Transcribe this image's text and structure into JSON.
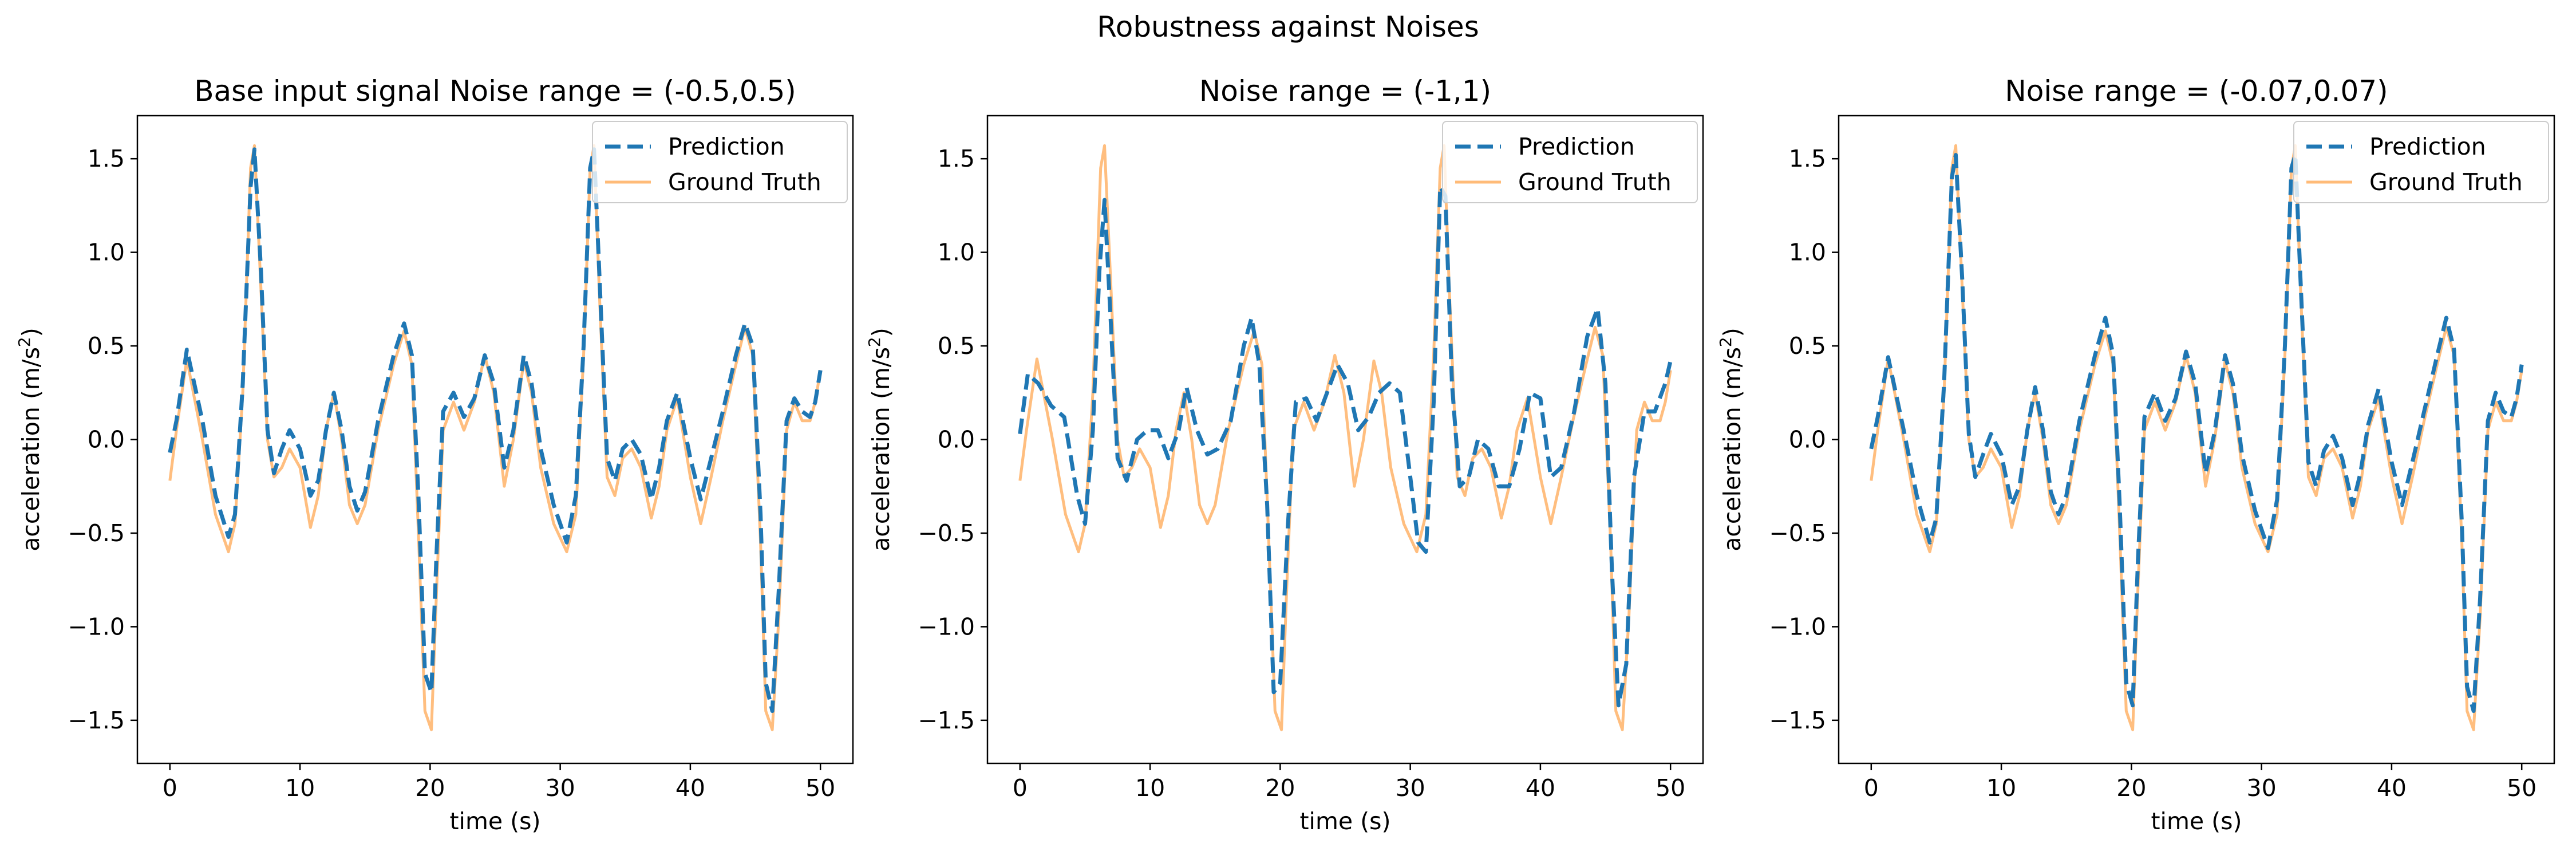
{
  "figure": {
    "suptitle": "Robustness against Noises"
  },
  "colors": {
    "prediction": "#1f77b4",
    "ground_truth": "#ffbb78"
  },
  "chart_data": [
    {
      "type": "line",
      "title": "Base input signal Noise range = (-0.5,0.5)",
      "xlabel": "time (s)",
      "ylabel_main": "acceleration (m/s",
      "ylabel_sup": "2",
      "ylabel_close": ")",
      "xlim": [
        -2.5,
        52.5
      ],
      "ylim": [
        -1.73,
        1.73
      ],
      "xticks": [
        0,
        10,
        20,
        30,
        40,
        50
      ],
      "yticks": [
        -1.5,
        -1.0,
        -0.5,
        0.0,
        0.5,
        1.0,
        1.5
      ],
      "legend_position": "upper right",
      "grid": false,
      "series": [
        {
          "name": "Prediction",
          "style": "dashed",
          "color": "#1f77b4",
          "x": [
            0,
            0.5,
            1.3,
            2.5,
            3.5,
            4.5,
            5.0,
            5.6,
            6.2,
            6.5,
            7.0,
            7.5,
            8.0,
            8.6,
            9.2,
            10.0,
            10.8,
            11.4,
            12.0,
            12.6,
            13.2,
            13.8,
            14.4,
            15.0,
            16.0,
            17.2,
            18.0,
            18.6,
            19.1,
            19.6,
            20.1,
            20.5,
            21.0,
            21.8,
            22.6,
            23.4,
            24.2,
            24.9,
            25.7,
            26.4,
            27.2,
            27.8,
            28.5,
            29.5,
            30.5,
            31.2,
            31.8,
            32.3,
            32.6,
            33.0,
            33.6,
            34.2,
            34.8,
            35.5,
            36.2,
            37.0,
            37.6,
            38.2,
            39.0,
            40.0,
            40.8,
            41.6,
            42.5,
            43.5,
            44.2,
            44.8,
            45.4,
            45.8,
            46.3,
            46.8,
            47.4,
            48.0,
            48.6,
            49.2,
            49.6,
            50.0
          ],
          "y": [
            -0.07,
            0.1,
            0.48,
            0.1,
            -0.3,
            -0.52,
            -0.4,
            0.3,
            1.35,
            1.55,
            0.9,
            0.05,
            -0.18,
            -0.05,
            0.05,
            -0.05,
            -0.3,
            -0.22,
            0.05,
            0.25,
            0.05,
            -0.25,
            -0.38,
            -0.28,
            0.1,
            0.45,
            0.62,
            0.45,
            -0.3,
            -1.25,
            -1.35,
            -0.6,
            0.15,
            0.25,
            0.12,
            0.22,
            0.45,
            0.3,
            -0.15,
            0.05,
            0.45,
            0.3,
            -0.05,
            -0.35,
            -0.55,
            -0.3,
            0.5,
            1.45,
            1.55,
            0.9,
            -0.1,
            -0.22,
            -0.05,
            0.0,
            -0.08,
            -0.32,
            -0.15,
            0.1,
            0.25,
            -0.1,
            -0.32,
            -0.1,
            0.15,
            0.45,
            0.62,
            0.5,
            -0.4,
            -1.3,
            -1.45,
            -0.8,
            0.1,
            0.22,
            0.15,
            0.12,
            0.2,
            0.37
          ]
        },
        {
          "name": "Ground Truth",
          "style": "solid",
          "color": "#ffbb78",
          "x": [
            0,
            0.5,
            1.3,
            2.5,
            3.5,
            4.5,
            5.0,
            5.6,
            6.2,
            6.5,
            7.0,
            7.5,
            8.0,
            8.6,
            9.2,
            10.0,
            10.8,
            11.4,
            12.0,
            12.6,
            13.2,
            13.8,
            14.4,
            15.0,
            16.0,
            17.2,
            18.0,
            18.6,
            19.1,
            19.6,
            20.1,
            20.5,
            21.0,
            21.8,
            22.6,
            23.4,
            24.2,
            24.9,
            25.7,
            26.4,
            27.2,
            27.8,
            28.5,
            29.5,
            30.5,
            31.2,
            31.8,
            32.3,
            32.6,
            33.0,
            33.6,
            34.2,
            34.8,
            35.5,
            36.2,
            37.0,
            37.6,
            38.2,
            39.0,
            40.0,
            40.8,
            41.6,
            42.5,
            43.5,
            44.2,
            44.8,
            45.4,
            45.8,
            46.3,
            46.8,
            47.4,
            48.0,
            48.6,
            49.2,
            49.6,
            50.0
          ],
          "y": [
            -0.22,
            0.05,
            0.43,
            0.0,
            -0.4,
            -0.6,
            -0.45,
            0.25,
            1.45,
            1.57,
            0.8,
            0.0,
            -0.2,
            -0.15,
            -0.05,
            -0.15,
            -0.47,
            -0.3,
            0.05,
            0.25,
            0.0,
            -0.35,
            -0.45,
            -0.35,
            0.05,
            0.4,
            0.58,
            0.4,
            -0.5,
            -1.45,
            -1.55,
            -0.8,
            0.05,
            0.2,
            0.05,
            0.2,
            0.45,
            0.25,
            -0.25,
            0.0,
            0.42,
            0.25,
            -0.15,
            -0.45,
            -0.6,
            -0.4,
            0.45,
            1.45,
            1.57,
            0.8,
            -0.2,
            -0.3,
            -0.1,
            -0.05,
            -0.15,
            -0.42,
            -0.25,
            0.05,
            0.22,
            -0.2,
            -0.45,
            -0.2,
            0.1,
            0.4,
            0.6,
            0.45,
            -0.55,
            -1.45,
            -1.55,
            -0.95,
            0.05,
            0.2,
            0.1,
            0.1,
            0.2,
            0.37
          ]
        }
      ]
    },
    {
      "type": "line",
      "title": "Noise range = (-1,1)",
      "xlabel": "time (s)",
      "ylabel_main": "acceleration (m/s",
      "ylabel_sup": "2",
      "ylabel_close": ")",
      "xlim": [
        -2.5,
        52.5
      ],
      "ylim": [
        -1.73,
        1.73
      ],
      "xticks": [
        0,
        10,
        20,
        30,
        40,
        50
      ],
      "yticks": [
        -1.5,
        -1.0,
        -0.5,
        0.0,
        0.5,
        1.0,
        1.5
      ],
      "legend_position": "upper right",
      "grid": false,
      "series": [
        {
          "name": "Prediction",
          "style": "dashed",
          "color": "#1f77b4",
          "x": [
            0,
            0.6,
            1.4,
            2.4,
            3.4,
            4.4,
            5.0,
            5.6,
            6.1,
            6.5,
            7.0,
            7.5,
            8.2,
            9.0,
            9.8,
            10.6,
            11.4,
            12.2,
            12.8,
            13.6,
            14.4,
            15.2,
            16.2,
            17.2,
            17.8,
            18.4,
            19.0,
            19.5,
            20.0,
            20.6,
            21.2,
            22.0,
            22.8,
            23.6,
            24.4,
            25.2,
            26.0,
            26.8,
            27.6,
            28.4,
            29.2,
            30.0,
            30.6,
            31.2,
            31.8,
            32.3,
            32.7,
            33.2,
            33.8,
            34.5,
            35.2,
            36.0,
            36.8,
            37.6,
            38.4,
            39.2,
            40.0,
            40.8,
            41.6,
            42.6,
            43.6,
            44.4,
            45.0,
            45.5,
            46.0,
            46.6,
            47.2,
            48.0,
            48.8,
            49.6,
            50.0
          ],
          "y": [
            0.03,
            0.35,
            0.3,
            0.18,
            0.12,
            -0.3,
            -0.45,
            0.05,
            0.9,
            1.28,
            0.6,
            -0.1,
            -0.22,
            0.0,
            0.05,
            0.05,
            -0.1,
            0.05,
            0.28,
            0.05,
            -0.08,
            -0.05,
            0.1,
            0.5,
            0.65,
            0.4,
            -0.35,
            -1.35,
            -1.3,
            -0.45,
            0.2,
            0.22,
            0.1,
            0.25,
            0.4,
            0.3,
            0.05,
            0.12,
            0.25,
            0.3,
            0.25,
            -0.2,
            -0.55,
            -0.6,
            0.2,
            1.35,
            1.3,
            0.3,
            -0.25,
            -0.2,
            0.0,
            -0.05,
            -0.25,
            -0.25,
            -0.05,
            0.25,
            0.22,
            -0.2,
            -0.15,
            0.15,
            0.55,
            0.7,
            0.3,
            -0.7,
            -1.42,
            -1.2,
            -0.2,
            0.15,
            0.15,
            0.3,
            0.42
          ]
        },
        {
          "name": "Ground Truth",
          "style": "solid",
          "color": "#ffbb78",
          "x": [
            0,
            0.5,
            1.3,
            2.5,
            3.5,
            4.5,
            5.0,
            5.6,
            6.2,
            6.5,
            7.0,
            7.5,
            8.0,
            8.6,
            9.2,
            10.0,
            10.8,
            11.4,
            12.0,
            12.6,
            13.2,
            13.8,
            14.4,
            15.0,
            16.0,
            17.2,
            18.0,
            18.6,
            19.1,
            19.6,
            20.1,
            20.5,
            21.0,
            21.8,
            22.6,
            23.4,
            24.2,
            24.9,
            25.7,
            26.4,
            27.2,
            27.8,
            28.5,
            29.5,
            30.5,
            31.2,
            31.8,
            32.3,
            32.6,
            33.0,
            33.6,
            34.2,
            34.8,
            35.5,
            36.2,
            37.0,
            37.6,
            38.2,
            39.0,
            40.0,
            40.8,
            41.6,
            42.5,
            43.5,
            44.2,
            44.8,
            45.4,
            45.8,
            46.3,
            46.8,
            47.4,
            48.0,
            48.6,
            49.2,
            49.6,
            50.0
          ],
          "y": [
            -0.22,
            0.05,
            0.43,
            0.0,
            -0.4,
            -0.6,
            -0.45,
            0.25,
            1.45,
            1.57,
            0.8,
            0.0,
            -0.2,
            -0.15,
            -0.05,
            -0.15,
            -0.47,
            -0.3,
            0.05,
            0.25,
            0.0,
            -0.35,
            -0.45,
            -0.35,
            0.05,
            0.4,
            0.58,
            0.4,
            -0.5,
            -1.45,
            -1.55,
            -0.8,
            0.05,
            0.2,
            0.05,
            0.2,
            0.45,
            0.25,
            -0.25,
            0.0,
            0.42,
            0.25,
            -0.15,
            -0.45,
            -0.6,
            -0.4,
            0.45,
            1.45,
            1.57,
            0.8,
            -0.2,
            -0.3,
            -0.1,
            -0.05,
            -0.15,
            -0.42,
            -0.25,
            0.05,
            0.22,
            -0.2,
            -0.45,
            -0.2,
            0.1,
            0.4,
            0.6,
            0.45,
            -0.55,
            -1.45,
            -1.55,
            -0.95,
            0.05,
            0.2,
            0.1,
            0.1,
            0.2,
            0.37
          ]
        }
      ]
    },
    {
      "type": "line",
      "title": "Noise range = (-0.07,0.07)",
      "xlabel": "time (s)",
      "ylabel_main": "acceleration (m/s",
      "ylabel_sup": "2",
      "ylabel_close": ")",
      "xlim": [
        -2.5,
        52.5
      ],
      "ylim": [
        -1.73,
        1.73
      ],
      "xticks": [
        0,
        10,
        20,
        30,
        40,
        50
      ],
      "yticks": [
        -1.5,
        -1.0,
        -0.5,
        0.0,
        0.5,
        1.0,
        1.5
      ],
      "legend_position": "upper right",
      "grid": false,
      "series": [
        {
          "name": "Prediction",
          "style": "dashed",
          "color": "#1f77b4",
          "x": [
            0,
            0.5,
            1.3,
            2.5,
            3.5,
            4.5,
            5.0,
            5.6,
            6.2,
            6.5,
            7.0,
            7.5,
            8.0,
            8.6,
            9.2,
            10.0,
            10.8,
            11.4,
            12.0,
            12.6,
            13.2,
            13.8,
            14.4,
            15.0,
            16.0,
            17.2,
            18.0,
            18.6,
            19.1,
            19.6,
            20.1,
            20.5,
            21.0,
            21.8,
            22.6,
            23.4,
            24.2,
            24.9,
            25.7,
            26.4,
            27.2,
            27.8,
            28.5,
            29.5,
            30.5,
            31.2,
            31.8,
            32.3,
            32.6,
            33.0,
            33.6,
            34.2,
            34.8,
            35.5,
            36.2,
            37.0,
            37.6,
            38.2,
            39.0,
            40.0,
            40.8,
            41.6,
            42.5,
            43.5,
            44.2,
            44.8,
            45.4,
            45.8,
            46.3,
            46.8,
            47.4,
            48.0,
            48.6,
            49.2,
            49.6,
            50.0
          ],
          "y": [
            -0.05,
            0.12,
            0.44,
            0.05,
            -0.3,
            -0.55,
            -0.42,
            0.3,
            1.4,
            1.52,
            0.85,
            0.03,
            -0.2,
            -0.08,
            0.03,
            -0.08,
            -0.35,
            -0.25,
            0.05,
            0.28,
            0.05,
            -0.28,
            -0.4,
            -0.3,
            0.1,
            0.45,
            0.65,
            0.45,
            -0.35,
            -1.3,
            -1.42,
            -0.65,
            0.12,
            0.25,
            0.1,
            0.22,
            0.47,
            0.3,
            -0.18,
            0.04,
            0.45,
            0.3,
            -0.08,
            -0.38,
            -0.58,
            -0.32,
            0.5,
            1.45,
            1.52,
            0.85,
            -0.12,
            -0.25,
            -0.06,
            0.02,
            -0.1,
            -0.35,
            -0.18,
            0.08,
            0.27,
            -0.12,
            -0.35,
            -0.12,
            0.15,
            0.45,
            0.65,
            0.48,
            -0.45,
            -1.32,
            -1.45,
            -0.85,
            0.1,
            0.25,
            0.15,
            0.12,
            0.22,
            0.4
          ]
        },
        {
          "name": "Ground Truth",
          "style": "solid",
          "color": "#ffbb78",
          "x": [
            0,
            0.5,
            1.3,
            2.5,
            3.5,
            4.5,
            5.0,
            5.6,
            6.2,
            6.5,
            7.0,
            7.5,
            8.0,
            8.6,
            9.2,
            10.0,
            10.8,
            11.4,
            12.0,
            12.6,
            13.2,
            13.8,
            14.4,
            15.0,
            16.0,
            17.2,
            18.0,
            18.6,
            19.1,
            19.6,
            20.1,
            20.5,
            21.0,
            21.8,
            22.6,
            23.4,
            24.2,
            24.9,
            25.7,
            26.4,
            27.2,
            27.8,
            28.5,
            29.5,
            30.5,
            31.2,
            31.8,
            32.3,
            32.6,
            33.0,
            33.6,
            34.2,
            34.8,
            35.5,
            36.2,
            37.0,
            37.6,
            38.2,
            39.0,
            40.0,
            40.8,
            41.6,
            42.5,
            43.5,
            44.2,
            44.8,
            45.4,
            45.8,
            46.3,
            46.8,
            47.4,
            48.0,
            48.6,
            49.2,
            49.6,
            50.0
          ],
          "y": [
            -0.22,
            0.05,
            0.43,
            0.0,
            -0.4,
            -0.6,
            -0.45,
            0.25,
            1.45,
            1.57,
            0.8,
            0.0,
            -0.2,
            -0.15,
            -0.05,
            -0.15,
            -0.47,
            -0.3,
            0.05,
            0.25,
            0.0,
            -0.35,
            -0.45,
            -0.35,
            0.05,
            0.4,
            0.58,
            0.4,
            -0.5,
            -1.45,
            -1.55,
            -0.8,
            0.05,
            0.2,
            0.05,
            0.2,
            0.45,
            0.25,
            -0.25,
            0.0,
            0.42,
            0.25,
            -0.15,
            -0.45,
            -0.6,
            -0.4,
            0.45,
            1.45,
            1.57,
            0.8,
            -0.2,
            -0.3,
            -0.1,
            -0.05,
            -0.15,
            -0.42,
            -0.25,
            0.05,
            0.22,
            -0.2,
            -0.45,
            -0.2,
            0.1,
            0.4,
            0.6,
            0.45,
            -0.55,
            -1.45,
            -1.55,
            -0.95,
            0.05,
            0.2,
            0.1,
            0.1,
            0.2,
            0.37
          ]
        }
      ]
    }
  ]
}
